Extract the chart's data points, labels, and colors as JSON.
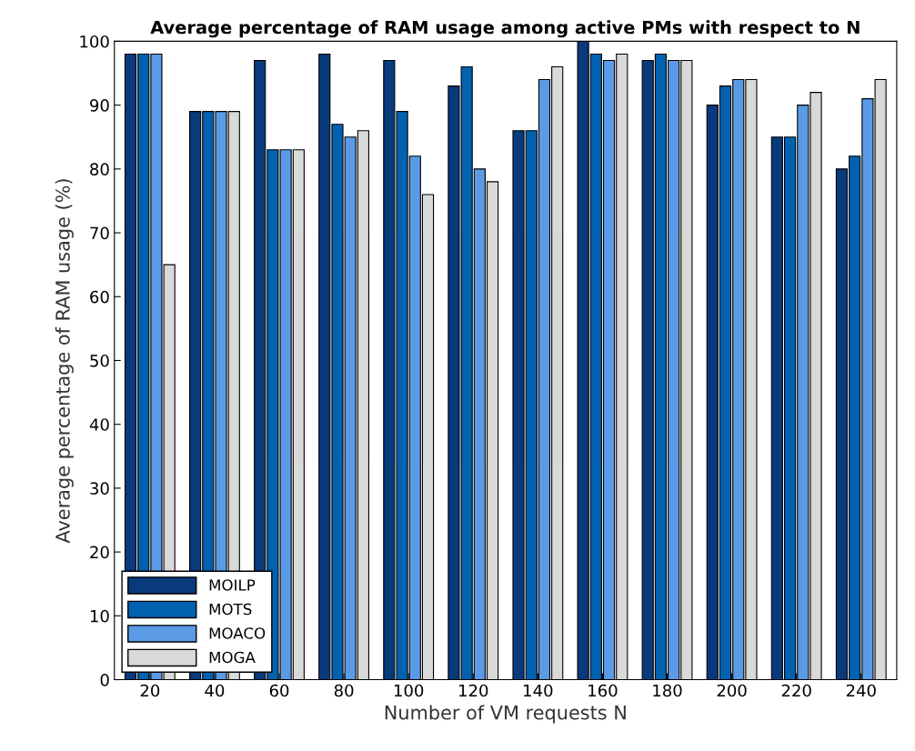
{
  "chart_data": {
    "type": "bar",
    "title": "Average percentage of RAM usage among active PMs with respect to N",
    "xlabel": "Number of VM requests N",
    "ylabel": "Average percentage of RAM usage (%)",
    "categories": [
      "20",
      "40",
      "60",
      "80",
      "100",
      "120",
      "140",
      "160",
      "180",
      "200",
      "220",
      "240"
    ],
    "series": [
      {
        "name": "MOILP",
        "color": "#083a7c",
        "values": [
          98,
          89,
          97,
          98,
          97,
          93,
          86,
          100,
          97,
          90,
          85,
          80
        ]
      },
      {
        "name": "MOTS",
        "color": "#0062b0",
        "values": [
          98,
          89,
          83,
          87,
          89,
          96,
          86,
          98,
          98,
          93,
          85,
          82
        ]
      },
      {
        "name": "MOACO",
        "color": "#5b9be6",
        "values": [
          98,
          89,
          83,
          85,
          82,
          80,
          94,
          97,
          97,
          94,
          90,
          91
        ]
      },
      {
        "name": "MOGA",
        "color": "#d9d9d9",
        "values": [
          65,
          89,
          83,
          86,
          76,
          78,
          96,
          98,
          97,
          94,
          92,
          94
        ]
      }
    ],
    "ylim": [
      0,
      100
    ],
    "yticks": [
      0,
      10,
      20,
      30,
      40,
      50,
      60,
      70,
      80,
      90,
      100
    ],
    "grid": false,
    "legend": "bottom left"
  }
}
